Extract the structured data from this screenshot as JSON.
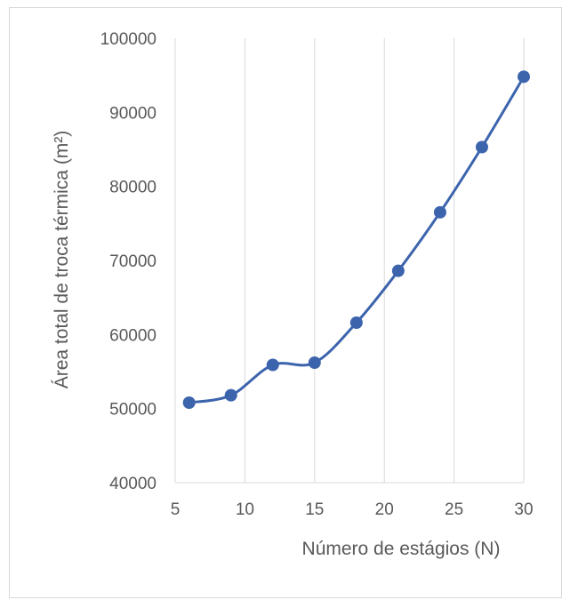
{
  "chart_data": {
    "type": "line",
    "xlabel": "Número de estágios (N)",
    "ylabel": "Área total de troca térmica (m²)",
    "xlim": [
      5,
      30
    ],
    "ylim": [
      40000,
      100000
    ],
    "xticks": [
      5,
      10,
      15,
      20,
      25,
      30
    ],
    "xtick_labels": [
      "5",
      "10",
      "15",
      "20",
      "25",
      "30"
    ],
    "yticks": [
      40000,
      50000,
      60000,
      70000,
      80000,
      90000,
      100000
    ],
    "ytick_labels": [
      "40000",
      "50000",
      "60000",
      "70000",
      "80000",
      "90000",
      "100000"
    ],
    "grid": "vertical",
    "legend": "none",
    "series": [
      {
        "color": "#3c64ad",
        "x": [
          6,
          9,
          12,
          15,
          18,
          21,
          24,
          27,
          30
        ],
        "y": [
          50800,
          51800,
          55900,
          56200,
          61600,
          68600,
          76500,
          85300,
          94800
        ]
      }
    ]
  }
}
